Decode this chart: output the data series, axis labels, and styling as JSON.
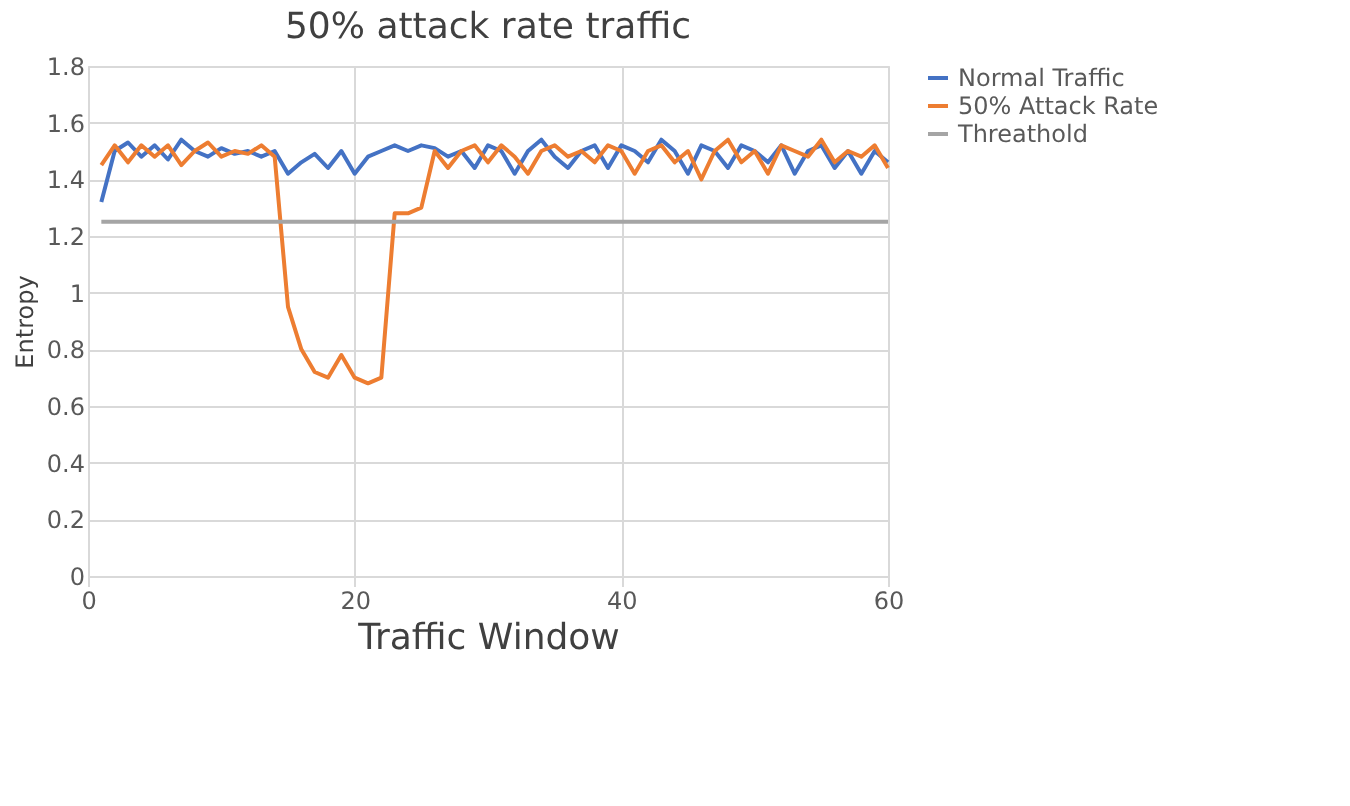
{
  "chart_data": {
    "type": "line",
    "title": "50% attack rate traffic",
    "xlabel": "Traffic Window",
    "ylabel": "Entropy",
    "x": [
      1,
      2,
      3,
      4,
      5,
      6,
      7,
      8,
      9,
      10,
      11,
      12,
      13,
      14,
      15,
      16,
      17,
      18,
      19,
      20,
      21,
      22,
      23,
      24,
      25,
      26,
      27,
      28,
      29,
      30,
      31,
      32,
      33,
      34,
      35,
      36,
      37,
      38,
      39,
      40,
      41,
      42,
      43,
      44,
      45,
      46,
      47,
      48,
      49,
      50,
      51,
      52,
      53,
      54,
      55,
      56,
      57,
      58,
      59,
      60
    ],
    "series": [
      {
        "name": "Normal Traffic",
        "color": "#4472c4",
        "values": [
          1.32,
          1.5,
          1.53,
          1.48,
          1.52,
          1.47,
          1.54,
          1.5,
          1.48,
          1.51,
          1.49,
          1.5,
          1.48,
          1.5,
          1.42,
          1.46,
          1.49,
          1.44,
          1.5,
          1.42,
          1.48,
          1.5,
          1.52,
          1.5,
          1.52,
          1.51,
          1.48,
          1.5,
          1.44,
          1.52,
          1.5,
          1.42,
          1.5,
          1.54,
          1.48,
          1.44,
          1.5,
          1.52,
          1.44,
          1.52,
          1.5,
          1.46,
          1.54,
          1.5,
          1.42,
          1.52,
          1.5,
          1.44,
          1.52,
          1.5,
          1.46,
          1.52,
          1.42,
          1.5,
          1.52,
          1.44,
          1.5,
          1.42,
          1.5,
          1.46
        ]
      },
      {
        "name": "50% Attack Rate",
        "color": "#ed7d31",
        "values": [
          1.45,
          1.52,
          1.46,
          1.52,
          1.48,
          1.52,
          1.45,
          1.5,
          1.53,
          1.48,
          1.5,
          1.49,
          1.52,
          1.48,
          0.95,
          0.8,
          0.72,
          0.7,
          0.78,
          0.7,
          0.68,
          0.7,
          1.28,
          1.28,
          1.3,
          1.5,
          1.44,
          1.5,
          1.52,
          1.46,
          1.52,
          1.48,
          1.42,
          1.5,
          1.52,
          1.48,
          1.5,
          1.46,
          1.52,
          1.5,
          1.42,
          1.5,
          1.52,
          1.46,
          1.5,
          1.4,
          1.5,
          1.54,
          1.46,
          1.5,
          1.42,
          1.52,
          1.5,
          1.48,
          1.54,
          1.46,
          1.5,
          1.48,
          1.52,
          1.44
        ]
      },
      {
        "name": "Threathold",
        "color": "#a5a5a5",
        "values": [
          1.25,
          1.25,
          1.25,
          1.25,
          1.25,
          1.25,
          1.25,
          1.25,
          1.25,
          1.25,
          1.25,
          1.25,
          1.25,
          1.25,
          1.25,
          1.25,
          1.25,
          1.25,
          1.25,
          1.25,
          1.25,
          1.25,
          1.25,
          1.25,
          1.25,
          1.25,
          1.25,
          1.25,
          1.25,
          1.25,
          1.25,
          1.25,
          1.25,
          1.25,
          1.25,
          1.25,
          1.25,
          1.25,
          1.25,
          1.25,
          1.25,
          1.25,
          1.25,
          1.25,
          1.25,
          1.25,
          1.25,
          1.25,
          1.25,
          1.25,
          1.25,
          1.25,
          1.25,
          1.25,
          1.25,
          1.25,
          1.25,
          1.25,
          1.25,
          1.25
        ]
      }
    ],
    "xlim": [
      0,
      60
    ],
    "xticks": [
      0,
      20,
      40,
      60
    ],
    "ylim": [
      0,
      1.8
    ],
    "yticks": [
      0,
      0.2,
      0.4,
      0.6,
      0.8,
      1,
      1.2,
      1.4,
      1.6,
      1.8
    ],
    "grid": true,
    "legend": "right",
    "marker": "none",
    "line_style": "solid"
  }
}
